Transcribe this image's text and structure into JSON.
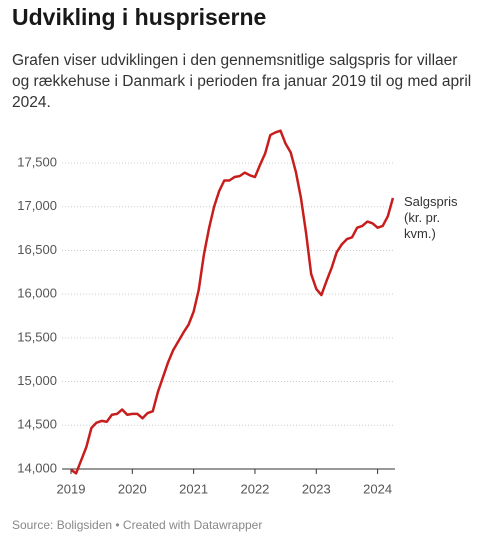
{
  "chart_data": {
    "type": "line",
    "title": "Udvikling i huspriserne",
    "subtitle": "Grafen viser udviklingen i den gennemsnitlige salgspris for villaer og rækkehuse i Danmark i perioden fra januar 2019 til og med april 2024.",
    "source": "Source: Boligsiden • Created with Datawrapper",
    "categories": [
      "2019",
      null,
      null,
      null,
      null,
      null,
      null,
      null,
      null,
      null,
      null,
      null,
      "2020",
      null,
      null,
      null,
      null,
      null,
      null,
      null,
      null,
      null,
      null,
      null,
      "2021",
      null,
      null,
      null,
      null,
      null,
      null,
      null,
      null,
      null,
      null,
      null,
      "2022",
      null,
      null,
      null,
      null,
      null,
      null,
      null,
      null,
      null,
      null,
      null,
      "2023",
      null,
      null,
      null,
      null,
      null,
      null,
      null,
      null,
      null,
      null,
      null,
      "2024",
      null,
      null,
      null
    ],
    "series": [
      {
        "name": "Salgspris (kr. pr. kvm.)",
        "color": "#c71e1d",
        "values": [
          13990,
          13950,
          14100,
          14250,
          14470,
          14530,
          14550,
          14540,
          14620,
          14630,
          14680,
          14620,
          14630,
          14630,
          14580,
          14640,
          14660,
          14880,
          15050,
          15220,
          15360,
          15460,
          15560,
          15650,
          15800,
          16050,
          16450,
          16750,
          17000,
          17180,
          17300,
          17300,
          17340,
          17350,
          17390,
          17360,
          17340,
          17480,
          17610,
          17820,
          17850,
          17870,
          17720,
          17620,
          17400,
          17100,
          16700,
          16230,
          16060,
          15990,
          16150,
          16300,
          16480,
          16570,
          16630,
          16650,
          16760,
          16780,
          16830,
          16810,
          16760,
          16780,
          16890,
          17100
        ]
      }
    ],
    "ylim": [
      13900,
      17950
    ],
    "yticks": [
      {
        "value": 14000,
        "label": "14,000"
      },
      {
        "value": 14500,
        "label": "14,500"
      },
      {
        "value": 15000,
        "label": "15,000"
      },
      {
        "value": 15500,
        "label": "15,500"
      },
      {
        "value": 16000,
        "label": "16,000"
      },
      {
        "value": 16500,
        "label": "16,500"
      },
      {
        "value": 17000,
        "label": "17,000"
      },
      {
        "value": 17500,
        "label": "17,500"
      }
    ],
    "grid": true
  }
}
